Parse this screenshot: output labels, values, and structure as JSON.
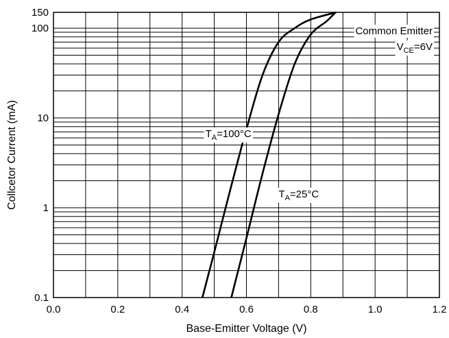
{
  "chart_data": {
    "type": "line",
    "title": "",
    "xlabel": "Base-Emitter Voltage (V)",
    "ylabel": "Collcetor Current (mA)",
    "xlim": [
      0.0,
      1.2
    ],
    "ylim": [
      0.1,
      150
    ],
    "yscale": "log",
    "grid": true,
    "xticks": [
      "0.0",
      "0.2",
      "0.4",
      "0.6",
      "0.8",
      "1.0",
      "1.2"
    ],
    "yticks": [
      {
        "value": 0.1,
        "label": "0.1"
      },
      {
        "value": 1,
        "label": "1"
      },
      {
        "value": 10,
        "label": "10"
      },
      {
        "value": 100,
        "label": "100"
      },
      {
        "value": 150,
        "label": "150"
      }
    ],
    "annotations": [
      {
        "text": "Common Emitter",
        "position": "top-right"
      },
      {
        "text_main": "V",
        "text_sub": "CE",
        "text_tail": "=6V",
        "position": "top-right"
      }
    ],
    "series": [
      {
        "name_main": "T",
        "name_sub": "A",
        "name_tail": "=100°C",
        "label_at": [
          0.5,
          6.8
        ],
        "points": [
          [
            0.463,
            0.1
          ],
          [
            0.5,
            0.32
          ],
          [
            0.55,
            1.6
          ],
          [
            0.6,
            7.5
          ],
          [
            0.65,
            30
          ],
          [
            0.7,
            70
          ],
          [
            0.75,
            100
          ],
          [
            0.8,
            125
          ],
          [
            0.879,
            150
          ]
        ]
      },
      {
        "name_main": "T",
        "name_sub": "A",
        "name_tail": "=25°C",
        "label_at": [
          0.7,
          1.45
        ],
        "points": [
          [
            0.553,
            0.1
          ],
          [
            0.6,
            0.46
          ],
          [
            0.65,
            2.4
          ],
          [
            0.7,
            11
          ],
          [
            0.75,
            40
          ],
          [
            0.8,
            85
          ],
          [
            0.85,
            120
          ],
          [
            0.877,
            150
          ]
        ]
      }
    ]
  }
}
